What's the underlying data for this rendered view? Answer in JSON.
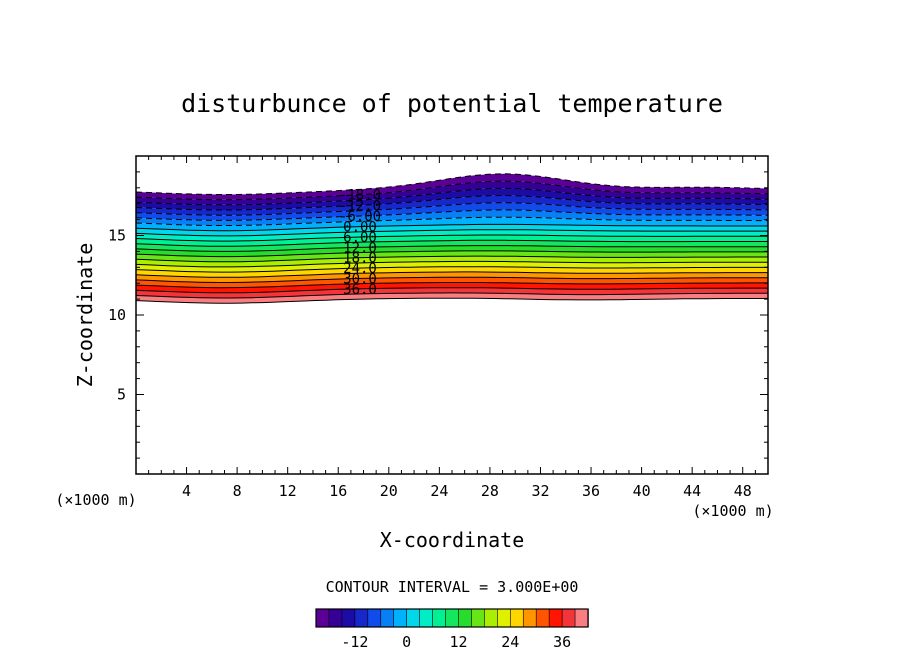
{
  "chart_data": {
    "type": "contour",
    "title": "disturbunce of potential temperature",
    "xlabel": "X-coordinate",
    "ylabel": "Z-coordinate",
    "x_unit_left": "(×1000 m)",
    "x_unit_right": "(×1000 m)",
    "xlim": [
      0,
      50
    ],
    "ylim": [
      0,
      20
    ],
    "xticks": [
      "4",
      "8",
      "12",
      "16",
      "20",
      "24",
      "28",
      "32",
      "36",
      "40",
      "44",
      "48"
    ],
    "yticks": [
      "5",
      "10",
      "15"
    ],
    "contour_interval_label": "CONTOUR INTERVAL = 3.000E+00",
    "contour_labels": [
      "-18.0",
      "-12.0",
      "-6.00",
      "0.00",
      "6.00",
      "12.0",
      "18.0",
      "24.0",
      "30.0",
      "36.0"
    ],
    "colorbar": {
      "min": -21,
      "max": 42,
      "ticks": [
        "-12",
        "0",
        "12",
        "24",
        "36"
      ]
    }
  }
}
